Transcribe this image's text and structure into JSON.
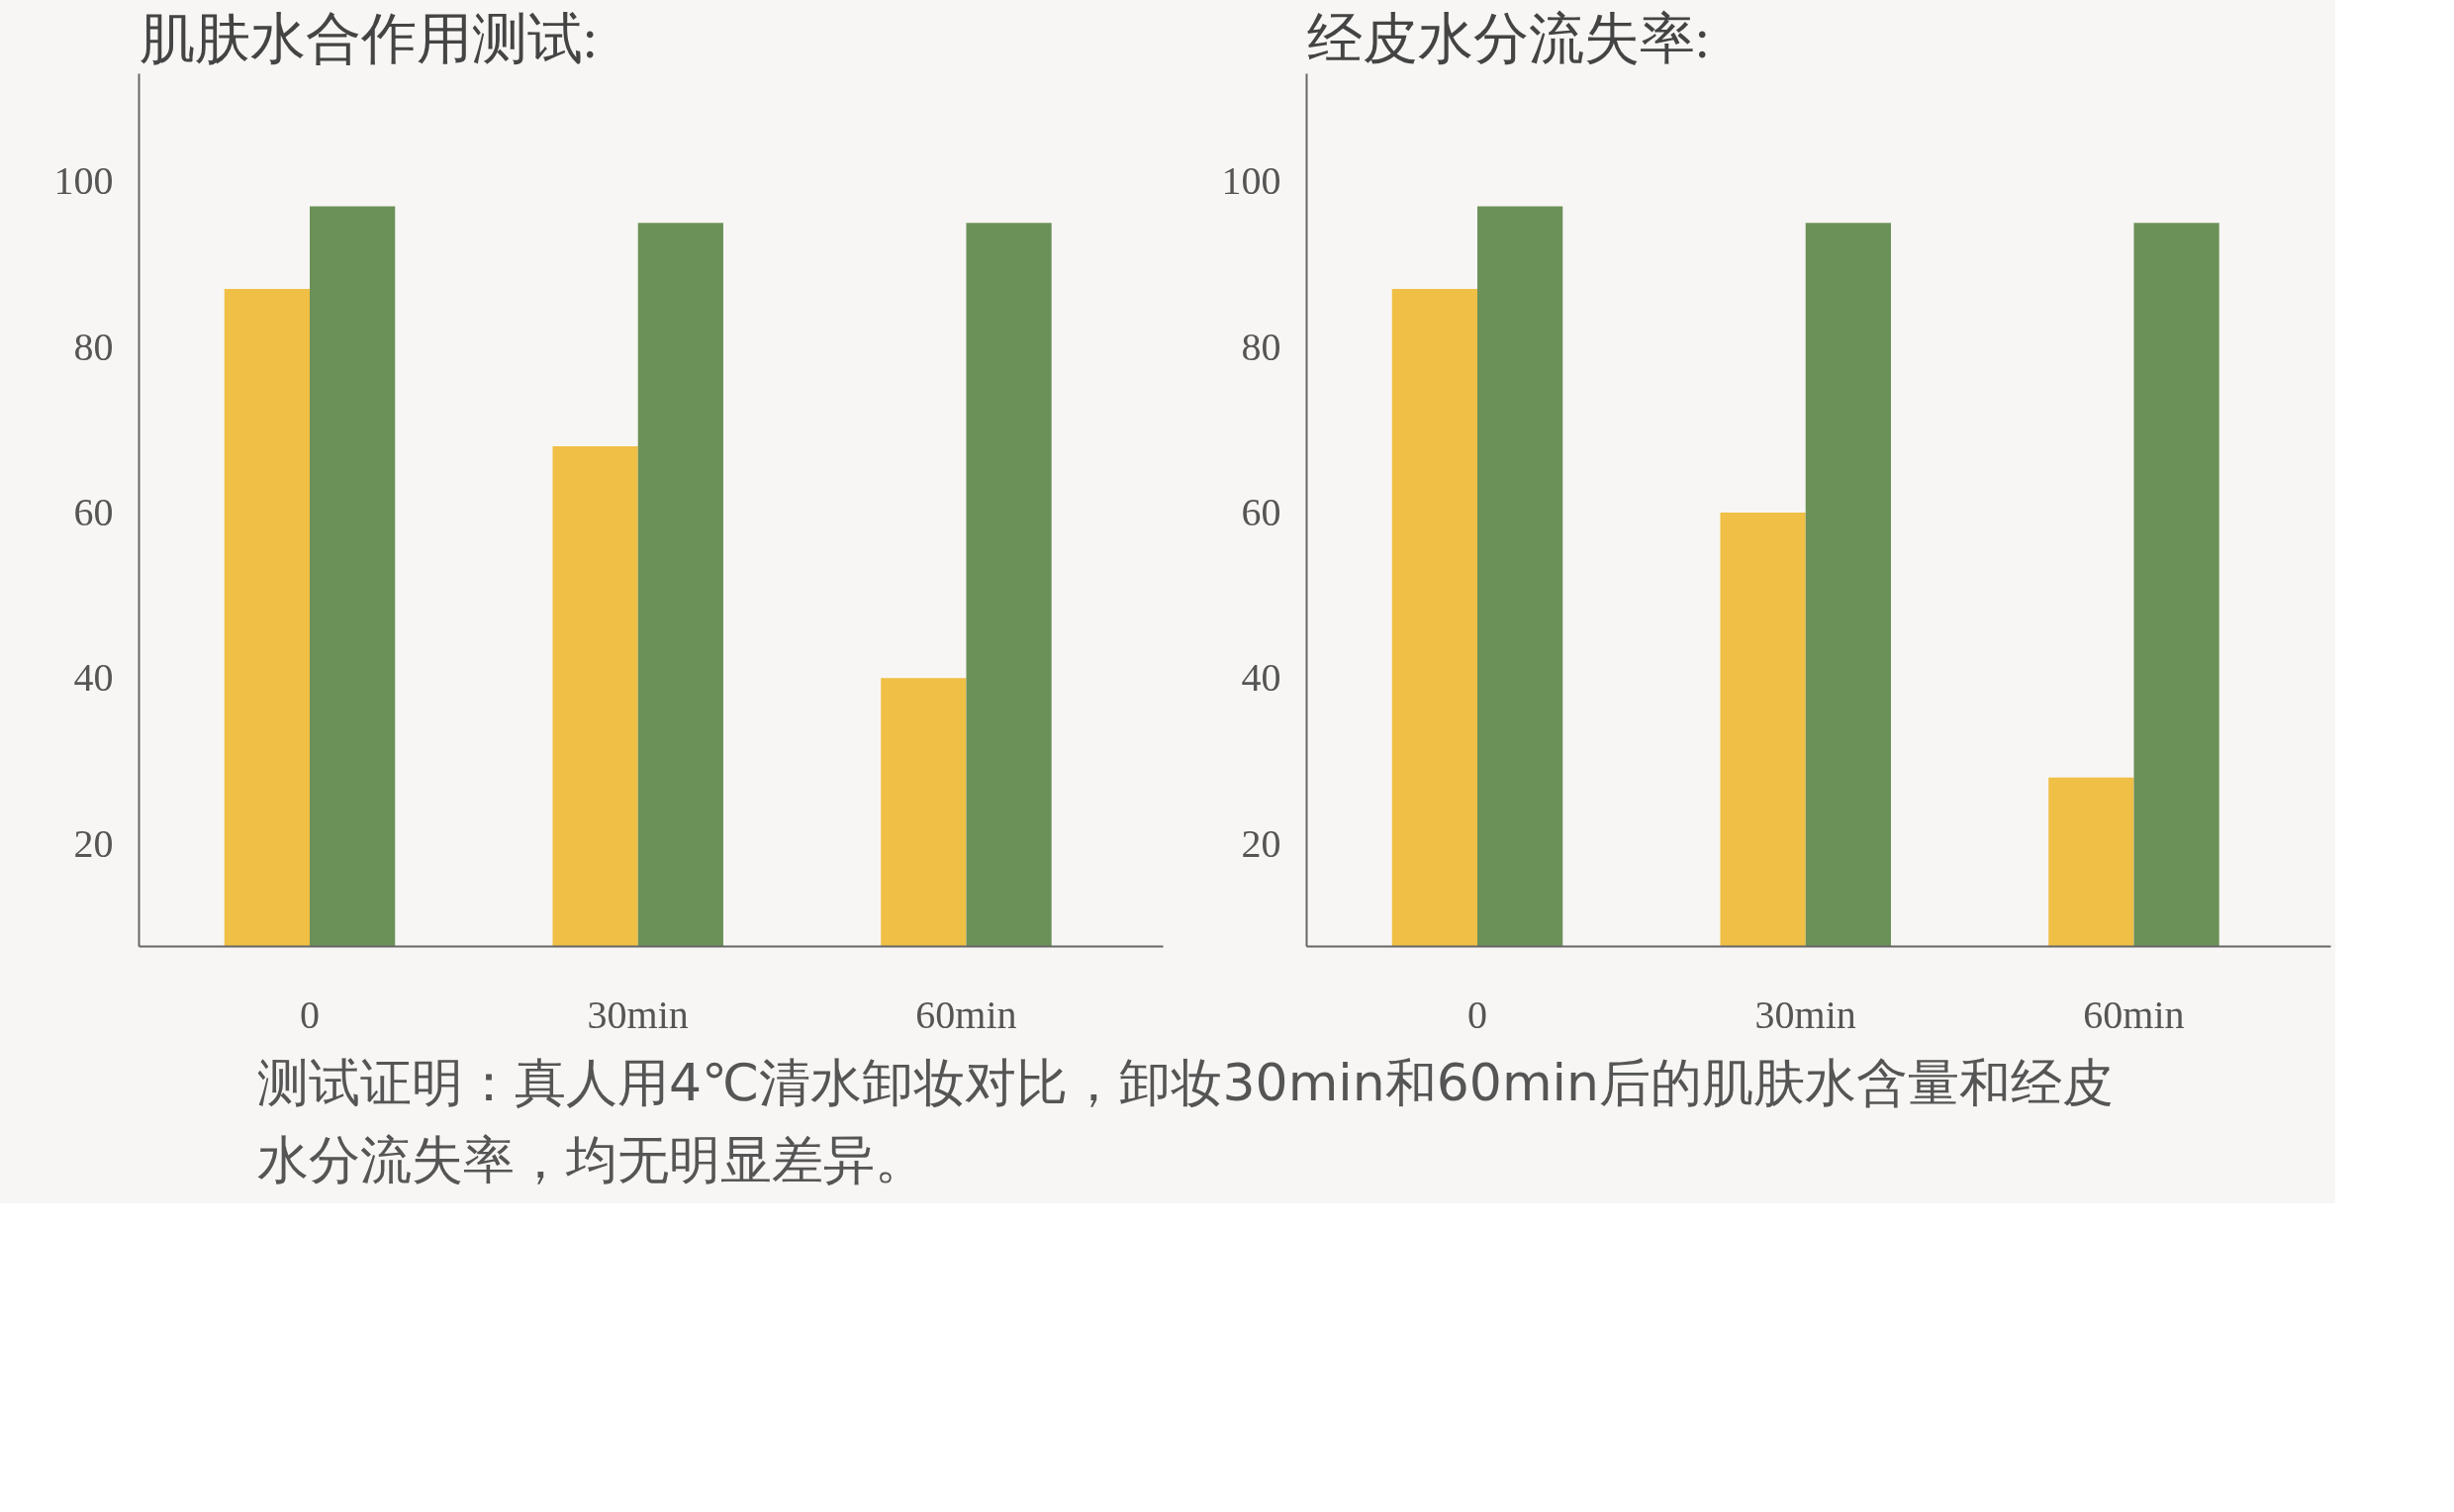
{
  "chart_data": [
    {
      "type": "bar",
      "title": "肌肤水合作用测试:",
      "categories": [
        "0",
        "30min",
        "60min"
      ],
      "series": [
        {
          "color": "#f0bf45",
          "values": [
            87,
            68,
            40
          ]
        },
        {
          "color": "#6c9158",
          "values": [
            97,
            95,
            95
          ]
        }
      ],
      "ylim": [
        7.6,
        113
      ],
      "yticks": [
        20,
        40,
        60,
        80,
        100
      ],
      "grid": false,
      "annotations": [
        "测试证明：真人用4℃清水卸妆对比，卸妆30min和60min后的肌肤水含量和经皮水分流失率，均无明显差异。"
      ]
    },
    {
      "type": "bar",
      "title": "经皮水分流失率:",
      "categories": [
        "0",
        "30min",
        "60min"
      ],
      "series": [
        {
          "color": "#f0bf45",
          "values": [
            87,
            60,
            28
          ]
        },
        {
          "color": "#6c9158",
          "values": [
            97,
            95,
            95
          ]
        }
      ],
      "ylim": [
        7.6,
        113
      ],
      "yticks": [
        20,
        40,
        60,
        80,
        100
      ],
      "grid": false
    }
  ]
}
